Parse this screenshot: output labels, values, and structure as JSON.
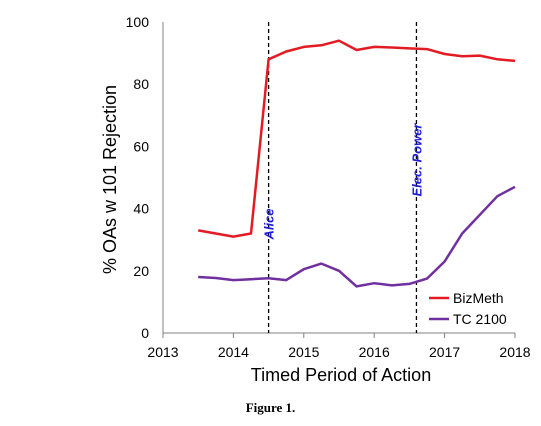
{
  "caption": "Figure 1.",
  "chart_data": {
    "type": "line",
    "xlabel": "Timed Period of Action",
    "ylabel": "% OAs w 101 Rejection",
    "xlim": [
      2013,
      2018
    ],
    "ylim": [
      0,
      100
    ],
    "xticks": [
      2013,
      2014,
      2015,
      2016,
      2017,
      2018
    ],
    "yticks": [
      0,
      20,
      40,
      60,
      80,
      100
    ],
    "grid": false,
    "legend_position": "bottom-right",
    "series": [
      {
        "name": "BizMeth",
        "color": "#e31b23",
        "x": [
          2013.5,
          2013.75,
          2014.0,
          2014.25,
          2014.5,
          2014.75,
          2015.0,
          2015.25,
          2015.5,
          2015.75,
          2016.0,
          2016.25,
          2016.5,
          2016.75,
          2017.0,
          2017.25,
          2017.5,
          2017.75,
          2018.0
        ],
        "values": [
          33,
          32,
          31,
          32,
          88,
          90.5,
          92,
          92.5,
          94,
          91,
          92,
          91.8,
          91.5,
          91.3,
          89.7,
          89,
          89.2,
          88,
          87.5
        ]
      },
      {
        "name": "TC 2100",
        "color": "#7030a0",
        "x": [
          2013.5,
          2013.75,
          2014.0,
          2014.25,
          2014.5,
          2014.75,
          2015.0,
          2015.25,
          2015.5,
          2015.75,
          2016.0,
          2016.25,
          2016.5,
          2016.75,
          2017.0,
          2017.25,
          2017.5,
          2017.75,
          2018.0
        ],
        "values": [
          18,
          17.7,
          17,
          17.3,
          17.6,
          17,
          20.5,
          22.3,
          20,
          15,
          16,
          15.3,
          15.8,
          17.5,
          23,
          32,
          38,
          44,
          47
        ]
      }
    ],
    "annotations": [
      {
        "label": "Alice",
        "x": 2014.5,
        "style": "dashed",
        "color": "#1f1fd6"
      },
      {
        "label": "Elec. Power",
        "x": 2016.6,
        "style": "dashed",
        "color": "#1f1fd6"
      }
    ]
  }
}
